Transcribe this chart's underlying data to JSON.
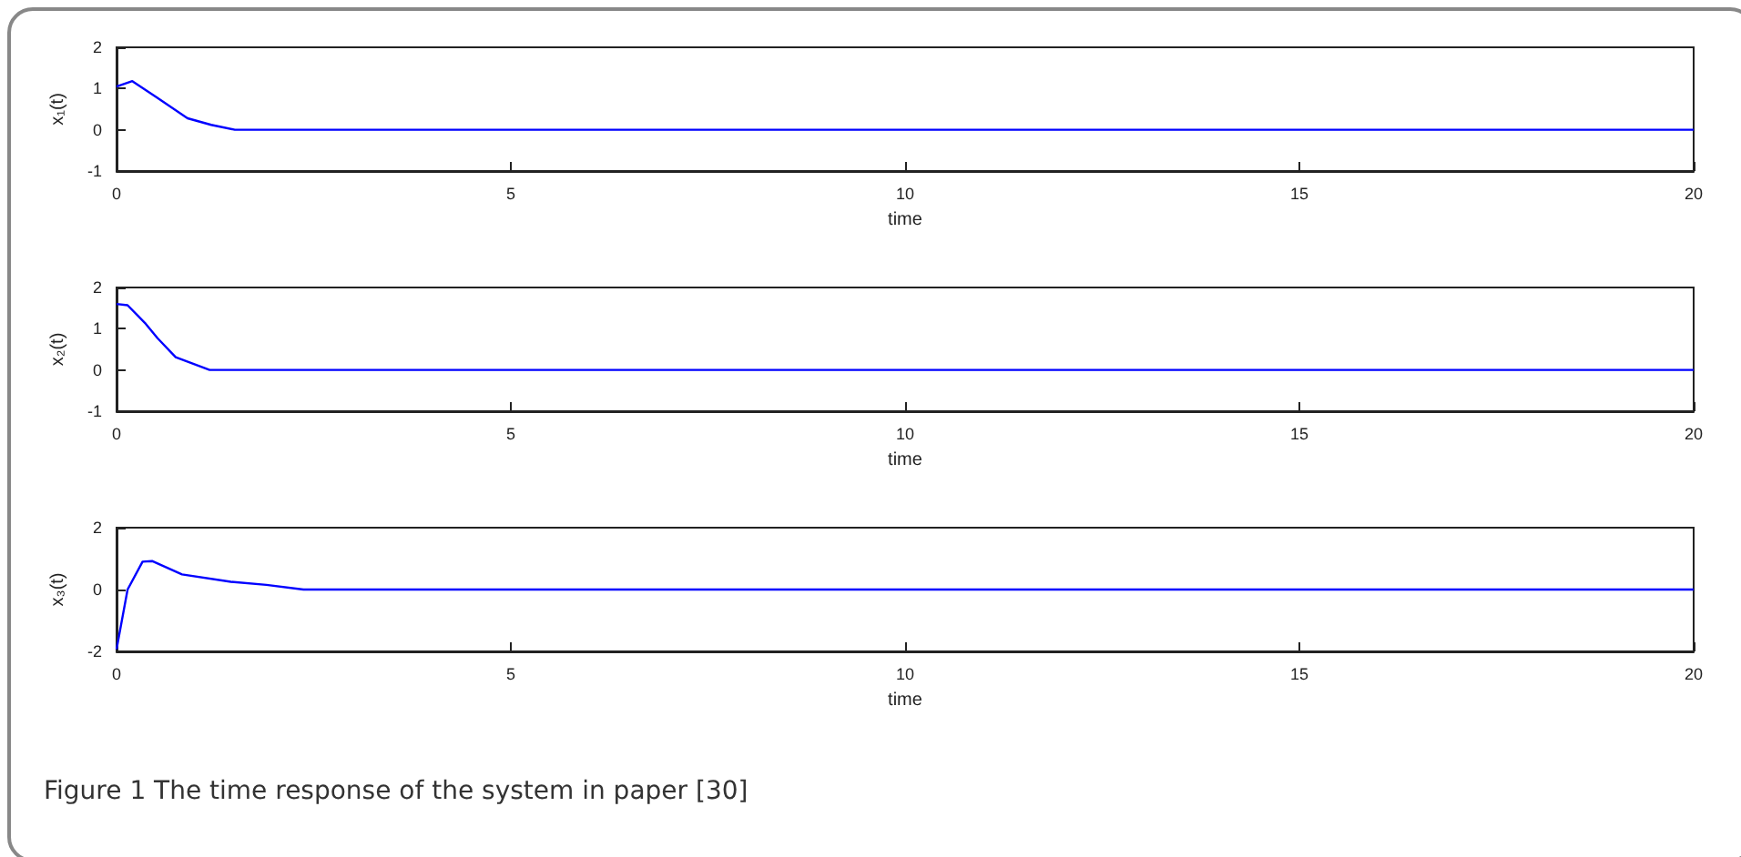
{
  "chart_data": [
    {
      "type": "line",
      "xlabel": "time",
      "ylabel": "x₁(t)",
      "xlim": [
        0,
        20
      ],
      "xticks": [
        0,
        5,
        10,
        15,
        20
      ],
      "ylim": [
        -1,
        2
      ],
      "yticks": [
        -1,
        0,
        1,
        2
      ],
      "grid": false,
      "marker": "none",
      "line_style": "solid",
      "series": [
        {
          "color": "#0000ff",
          "x": [
            0,
            0.2,
            0.5,
            0.9,
            1.2,
            1.5,
            20
          ],
          "values": [
            1.05,
            1.18,
            0.8,
            0.28,
            0.12,
            0,
            0
          ]
        }
      ]
    },
    {
      "type": "line",
      "xlabel": "time",
      "ylabel": "x₂(t)",
      "xlim": [
        0,
        20
      ],
      "xticks": [
        0,
        5,
        10,
        15,
        20
      ],
      "ylim": [
        -1,
        2
      ],
      "yticks": [
        -1,
        0,
        1,
        2
      ],
      "grid": false,
      "marker": "none",
      "line_style": "solid",
      "series": [
        {
          "color": "#0000ff",
          "x": [
            0,
            0.14,
            0.37,
            0.52,
            0.75,
            1.18,
            20
          ],
          "values": [
            1.6,
            1.57,
            1.12,
            0.77,
            0.31,
            0,
            0
          ]
        }
      ]
    },
    {
      "type": "line",
      "xlabel": "time",
      "ylabel": "x₃(t)",
      "xlim": [
        0,
        20
      ],
      "xticks": [
        0,
        5,
        10,
        15,
        20
      ],
      "ylim": [
        -2,
        2
      ],
      "yticks": [
        -2,
        0,
        2
      ],
      "grid": false,
      "marker": "none",
      "line_style": "solid",
      "series": [
        {
          "color": "#0000ff",
          "x": [
            0,
            0.14,
            0.33,
            0.45,
            0.83,
            1.45,
            1.9,
            2.37,
            20
          ],
          "values": [
            -1.93,
            0,
            0.9,
            0.92,
            0.49,
            0.25,
            0.15,
            0,
            0
          ]
        }
      ],
      "annotations": [
        "Figure 1  The time response of the system in paper [30]"
      ]
    }
  ]
}
